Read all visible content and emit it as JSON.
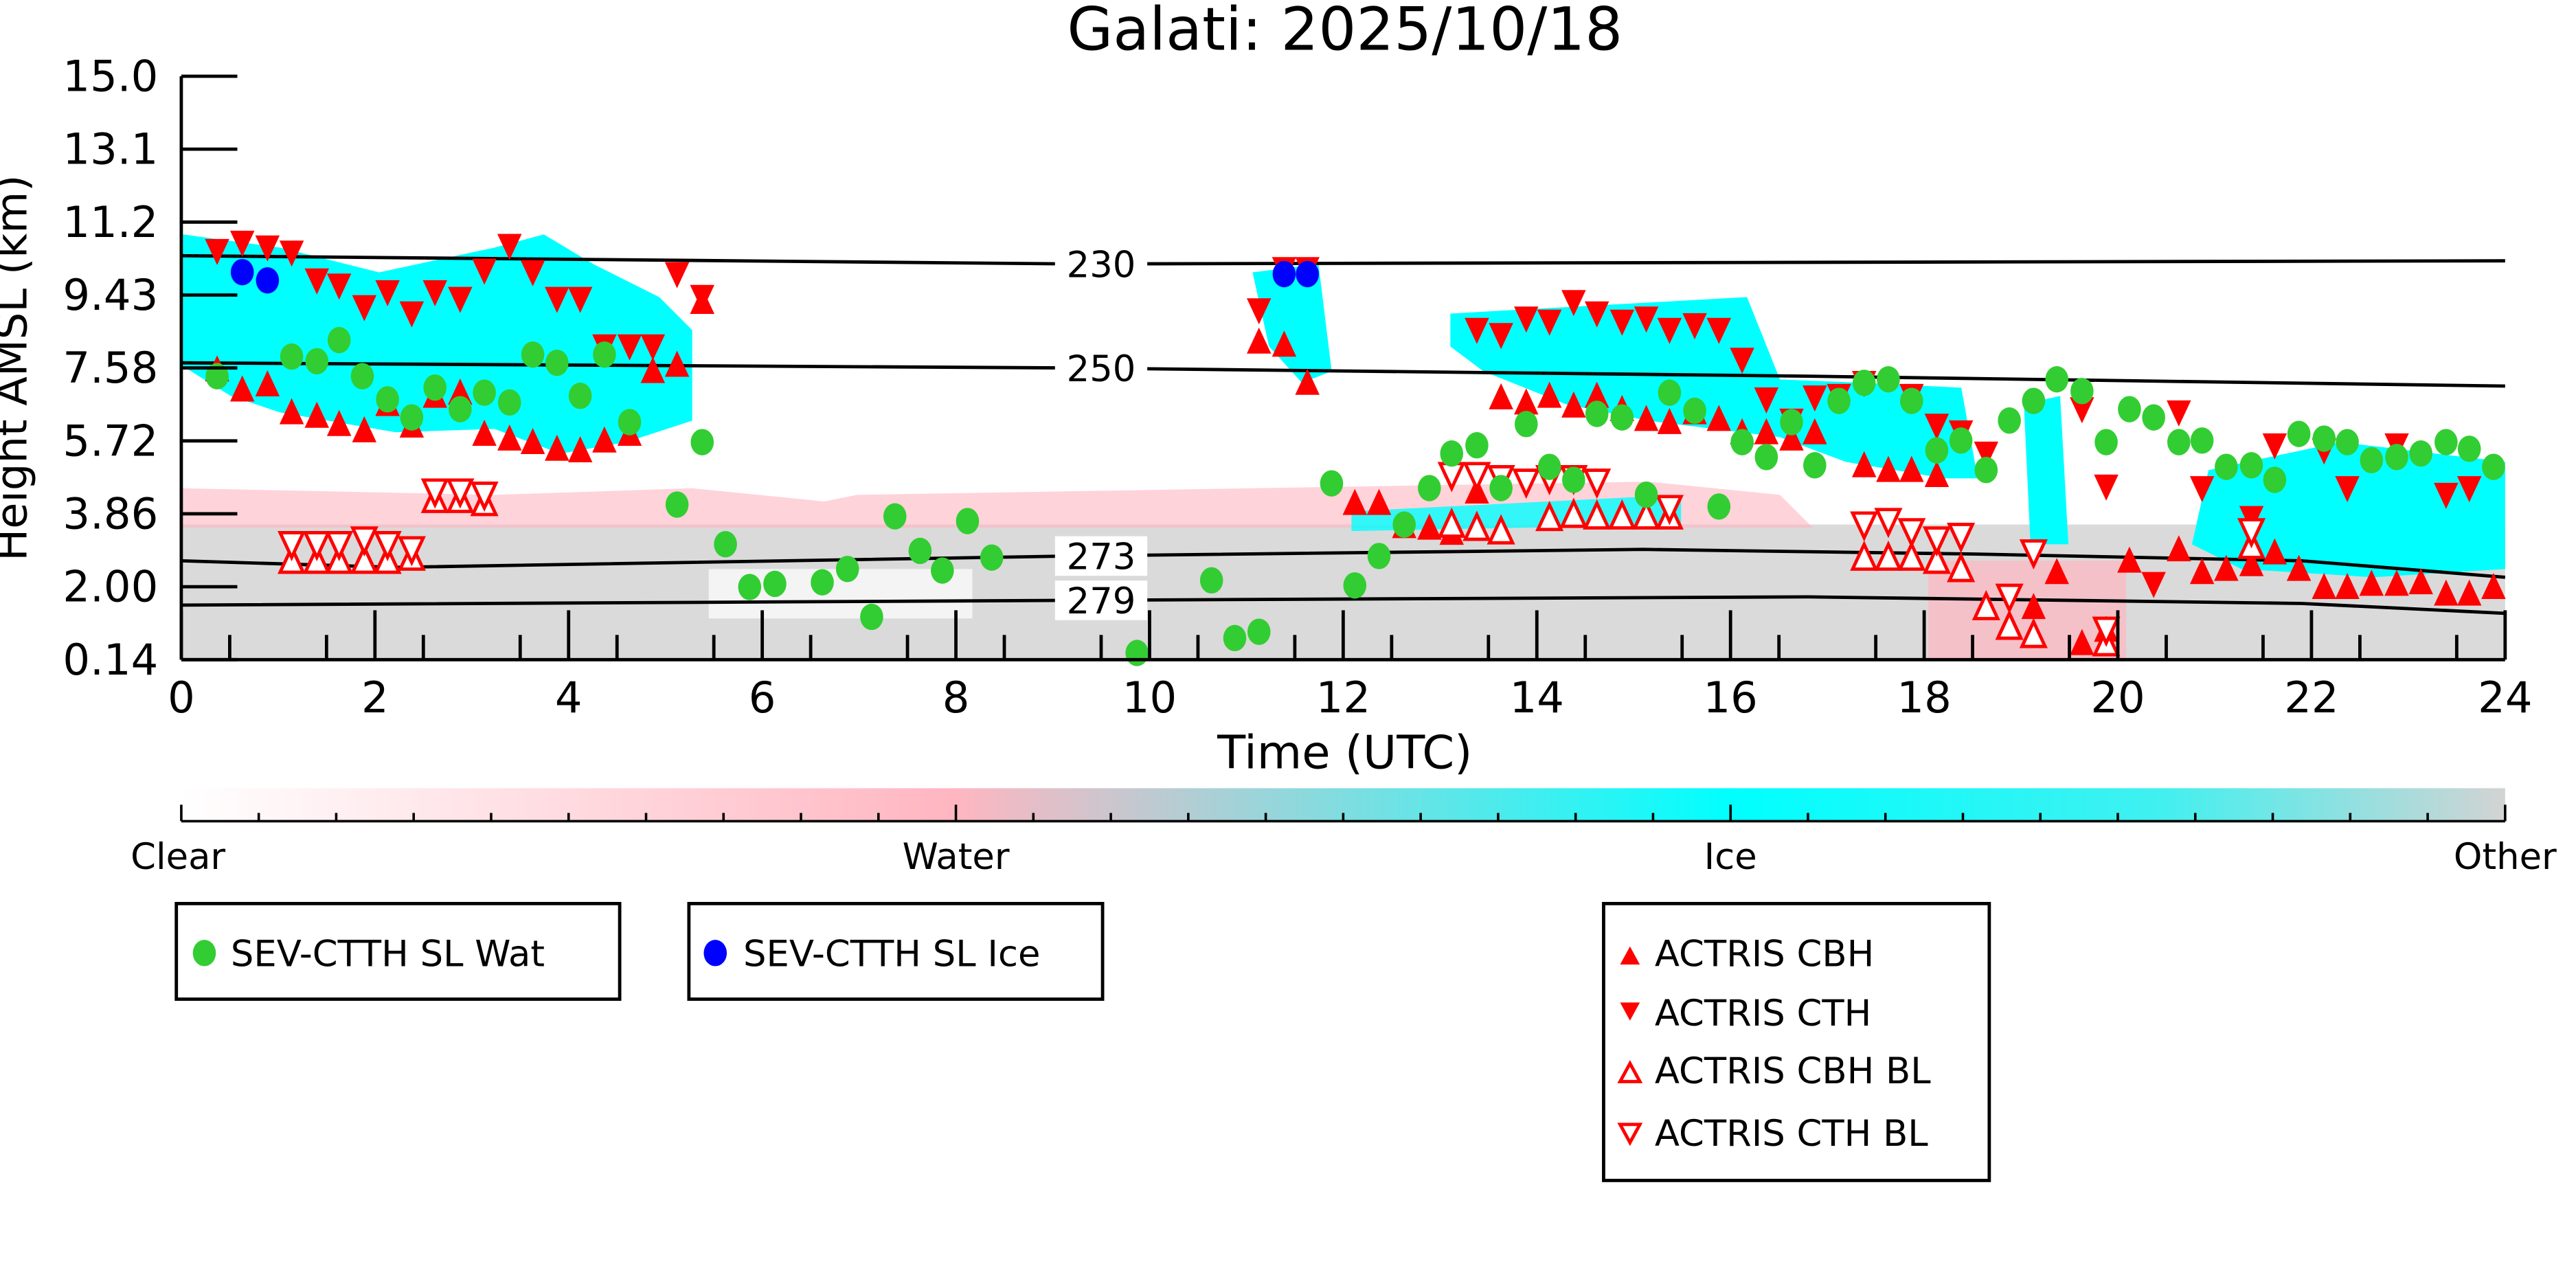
{
  "chart_data": {
    "type": "scatter",
    "title": "Galati: 2025/10/18",
    "xlabel": "Time (UTC)",
    "ylabel": "Height AMSL (km)",
    "xlim": [
      0,
      24
    ],
    "ylim": [
      0.14,
      15.0
    ],
    "xticks": [
      "0",
      "2",
      "4",
      "6",
      "8",
      "10",
      "12",
      "14",
      "16",
      "18",
      "20",
      "22",
      "24"
    ],
    "yticks": [
      "0.14",
      "2.00",
      "3.86",
      "5.72",
      "7.58",
      "9.43",
      "11.2",
      "13.1",
      "15.0"
    ],
    "colorbar": {
      "labels": [
        "Clear",
        "Water",
        "Ice",
        "Other"
      ],
      "colors": [
        "#ffffff",
        "#ffb6c1",
        "#00ffff",
        "#d3d3d3"
      ]
    },
    "isotherms": [
      {
        "label": "230",
        "points": [
          [
            0,
            10.43
          ],
          [
            9.2,
            10.22
          ],
          [
            24,
            10.3
          ]
        ]
      },
      {
        "label": "250",
        "points": [
          [
            0,
            7.7
          ],
          [
            9.2,
            7.57
          ],
          [
            16.8,
            7.36
          ],
          [
            24,
            7.11
          ]
        ]
      },
      {
        "label": "273",
        "points": [
          [
            0,
            2.66
          ],
          [
            2.2,
            2.49
          ],
          [
            9.2,
            2.78
          ],
          [
            15.1,
            2.95
          ],
          [
            18.5,
            2.83
          ],
          [
            21.9,
            2.66
          ],
          [
            24,
            2.24
          ]
        ]
      },
      {
        "label": "279",
        "points": [
          [
            0,
            1.53
          ],
          [
            9.2,
            1.65
          ],
          [
            16.8,
            1.74
          ],
          [
            21.9,
            1.57
          ],
          [
            24,
            1.32
          ]
        ]
      }
    ],
    "series": [
      {
        "name": "SEV-CTTH SL Wat",
        "marker": "circle",
        "color": "#32cd32",
        "points": [
          [
            0.37,
            7.36
          ],
          [
            1.14,
            7.86
          ],
          [
            1.4,
            7.74
          ],
          [
            1.63,
            8.28
          ],
          [
            1.87,
            7.36
          ],
          [
            2.13,
            6.77
          ],
          [
            2.38,
            6.31
          ],
          [
            2.62,
            7.07
          ],
          [
            2.88,
            6.52
          ],
          [
            3.13,
            6.94
          ],
          [
            3.39,
            6.69
          ],
          [
            3.63,
            7.91
          ],
          [
            3.88,
            7.7
          ],
          [
            4.12,
            6.86
          ],
          [
            4.37,
            7.91
          ],
          [
            4.63,
            6.19
          ],
          [
            5.12,
            4.09
          ],
          [
            5.38,
            5.68
          ],
          [
            5.62,
            3.08
          ],
          [
            5.87,
            1.99
          ],
          [
            6.13,
            2.07
          ],
          [
            6.62,
            2.11
          ],
          [
            6.88,
            2.45
          ],
          [
            7.13,
            1.23
          ],
          [
            7.37,
            3.79
          ],
          [
            7.63,
            2.91
          ],
          [
            7.86,
            2.41
          ],
          [
            8.12,
            3.67
          ],
          [
            8.37,
            2.74
          ],
          [
            9.87,
            0.31
          ],
          [
            10.64,
            2.16
          ],
          [
            10.88,
            0.69
          ],
          [
            11.13,
            0.85
          ],
          [
            11.88,
            4.63
          ],
          [
            12.12,
            2.03
          ],
          [
            12.37,
            2.78
          ],
          [
            12.63,
            3.58
          ],
          [
            12.89,
            4.51
          ],
          [
            13.12,
            5.39
          ],
          [
            13.38,
            5.6
          ],
          [
            13.63,
            4.51
          ],
          [
            13.89,
            6.14
          ],
          [
            14.13,
            5.05
          ],
          [
            14.38,
            4.72
          ],
          [
            14.62,
            6.4
          ],
          [
            14.88,
            6.31
          ],
          [
            15.13,
            4.34
          ],
          [
            15.37,
            6.94
          ],
          [
            15.63,
            6.48
          ],
          [
            15.88,
            4.04
          ],
          [
            16.12,
            5.68
          ],
          [
            16.37,
            5.3
          ],
          [
            16.63,
            6.19
          ],
          [
            16.87,
            5.09
          ],
          [
            17.12,
            6.73
          ],
          [
            17.38,
            7.19
          ],
          [
            17.63,
            7.28
          ],
          [
            17.87,
            6.73
          ],
          [
            18.13,
            5.47
          ],
          [
            18.38,
            5.72
          ],
          [
            18.64,
            4.97
          ],
          [
            18.88,
            6.23
          ],
          [
            19.13,
            6.73
          ],
          [
            19.37,
            7.28
          ],
          [
            19.63,
            6.98
          ],
          [
            19.88,
            5.68
          ],
          [
            20.12,
            6.52
          ],
          [
            20.37,
            6.31
          ],
          [
            20.63,
            5.68
          ],
          [
            20.87,
            5.72
          ],
          [
            21.12,
            5.05
          ],
          [
            21.38,
            5.09
          ],
          [
            21.62,
            4.72
          ],
          [
            21.87,
            5.89
          ],
          [
            22.13,
            5.77
          ],
          [
            22.37,
            5.68
          ],
          [
            22.62,
            5.22
          ],
          [
            22.88,
            5.3
          ],
          [
            23.13,
            5.39
          ],
          [
            23.39,
            5.68
          ],
          [
            23.63,
            5.51
          ],
          [
            23.88,
            5.05
          ]
        ]
      },
      {
        "name": "SEV-CTTH SL Ice",
        "marker": "circle",
        "color": "#0000ff",
        "points": [
          [
            0.63,
            10.01
          ],
          [
            0.89,
            9.8
          ],
          [
            11.39,
            9.96
          ],
          [
            11.63,
            9.96
          ]
        ]
      },
      {
        "name": "ACTRIS CBH",
        "marker": "triangle-up",
        "color": "#ff0000",
        "points": [
          [
            0.37,
            7.53
          ],
          [
            0.63,
            7.02
          ],
          [
            0.89,
            7.15
          ],
          [
            1.14,
            6.44
          ],
          [
            1.4,
            6.35
          ],
          [
            1.63,
            6.14
          ],
          [
            1.89,
            5.98
          ],
          [
            2.13,
            6.65
          ],
          [
            2.38,
            6.1
          ],
          [
            2.62,
            6.86
          ],
          [
            2.88,
            6.94
          ],
          [
            3.13,
            5.89
          ],
          [
            3.39,
            5.77
          ],
          [
            3.63,
            5.68
          ],
          [
            3.88,
            5.51
          ],
          [
            4.12,
            5.47
          ],
          [
            4.37,
            5.72
          ],
          [
            4.63,
            5.89
          ],
          [
            4.87,
            7.49
          ],
          [
            5.12,
            7.65
          ],
          [
            5.38,
            9.25
          ],
          [
            11.13,
            8.24
          ],
          [
            11.39,
            8.16
          ],
          [
            11.63,
            7.19
          ],
          [
            12.12,
            4.13
          ],
          [
            12.37,
            4.13
          ],
          [
            12.63,
            3.54
          ],
          [
            12.89,
            3.5
          ],
          [
            13.12,
            3.37
          ],
          [
            13.38,
            4.42
          ],
          [
            13.63,
            6.82
          ],
          [
            13.89,
            6.69
          ],
          [
            14.13,
            6.86
          ],
          [
            14.38,
            6.61
          ],
          [
            14.62,
            6.86
          ],
          [
            14.88,
            6.52
          ],
          [
            15.13,
            6.27
          ],
          [
            15.37,
            6.19
          ],
          [
            15.63,
            6.44
          ],
          [
            15.88,
            6.27
          ],
          [
            16.12,
            5.93
          ],
          [
            16.37,
            5.93
          ],
          [
            16.63,
            5.77
          ],
          [
            16.87,
            5.93
          ],
          [
            17.38,
            5.09
          ],
          [
            17.63,
            4.97
          ],
          [
            17.87,
            4.97
          ],
          [
            18.13,
            4.84
          ],
          [
            18.64,
            1.48
          ],
          [
            18.88,
            1.06
          ],
          [
            19.13,
            1.48
          ],
          [
            19.37,
            2.37
          ],
          [
            19.63,
            0.56
          ],
          [
            19.88,
            0.9
          ],
          [
            20.12,
            2.66
          ],
          [
            20.63,
            2.95
          ],
          [
            20.87,
            2.37
          ],
          [
            21.12,
            2.45
          ],
          [
            21.38,
            2.57
          ],
          [
            21.62,
            2.87
          ],
          [
            21.87,
            2.45
          ],
          [
            22.13,
            1.99
          ],
          [
            22.37,
            1.99
          ],
          [
            22.62,
            2.07
          ],
          [
            22.88,
            2.07
          ],
          [
            23.13,
            2.11
          ],
          [
            23.39,
            1.82
          ],
          [
            23.63,
            1.82
          ],
          [
            23.88,
            1.99
          ]
        ]
      },
      {
        "name": "ACTRIS CTH",
        "marker": "triangle-down",
        "color": "#ff0000",
        "points": [
          [
            0.37,
            10.55
          ],
          [
            0.63,
            10.76
          ],
          [
            0.89,
            10.64
          ],
          [
            1.14,
            10.51
          ],
          [
            1.4,
            9.8
          ],
          [
            1.63,
            9.67
          ],
          [
            1.89,
            9.12
          ],
          [
            2.13,
            9.5
          ],
          [
            2.38,
            8.96
          ],
          [
            2.62,
            9.5
          ],
          [
            2.88,
            9.33
          ],
          [
            3.13,
            10.05
          ],
          [
            3.39,
            10.68
          ],
          [
            3.63,
            10.01
          ],
          [
            3.88,
            9.33
          ],
          [
            4.12,
            9.33
          ],
          [
            4.37,
            8.12
          ],
          [
            4.63,
            8.12
          ],
          [
            4.87,
            8.12
          ],
          [
            5.12,
            9.96
          ],
          [
            5.38,
            9.38
          ],
          [
            11.13,
            9.04
          ],
          [
            11.39,
            10.09
          ],
          [
            11.63,
            10.09
          ],
          [
            13.38,
            8.54
          ],
          [
            13.63,
            8.41
          ],
          [
            13.89,
            8.83
          ],
          [
            14.13,
            8.75
          ],
          [
            14.38,
            9.25
          ],
          [
            14.62,
            8.96
          ],
          [
            14.88,
            8.75
          ],
          [
            15.13,
            8.83
          ],
          [
            15.37,
            8.54
          ],
          [
            15.63,
            8.66
          ],
          [
            15.88,
            8.54
          ],
          [
            16.12,
            7.78
          ],
          [
            16.37,
            6.77
          ],
          [
            16.63,
            6.23
          ],
          [
            16.87,
            6.82
          ],
          [
            17.12,
            6.86
          ],
          [
            17.38,
            7.19
          ],
          [
            17.87,
            6.86
          ],
          [
            18.13,
            6.1
          ],
          [
            18.38,
            5.93
          ],
          [
            18.64,
            5.39
          ],
          [
            19.63,
            6.52
          ],
          [
            19.88,
            4.55
          ],
          [
            20.37,
            2.07
          ],
          [
            20.63,
            6.44
          ],
          [
            20.87,
            4.51
          ],
          [
            21.38,
            3.75
          ],
          [
            21.62,
            5.6
          ],
          [
            22.13,
            5.47
          ],
          [
            22.37,
            4.51
          ],
          [
            22.88,
            5.6
          ],
          [
            23.39,
            4.34
          ],
          [
            23.63,
            4.51
          ]
        ]
      },
      {
        "name": "ACTRIS CBH BL",
        "marker": "triangle-up-open",
        "color": "#ff0000",
        "points": [
          [
            1.14,
            2.66
          ],
          [
            1.4,
            2.66
          ],
          [
            1.63,
            2.66
          ],
          [
            1.89,
            2.66
          ],
          [
            2.13,
            2.66
          ],
          [
            2.38,
            2.74
          ],
          [
            2.62,
            4.21
          ],
          [
            2.88,
            4.21
          ],
          [
            3.13,
            4.13
          ],
          [
            13.12,
            3.58
          ],
          [
            13.38,
            3.5
          ],
          [
            13.63,
            3.41
          ],
          [
            14.13,
            3.75
          ],
          [
            14.38,
            3.83
          ],
          [
            14.62,
            3.79
          ],
          [
            14.88,
            3.79
          ],
          [
            15.13,
            3.79
          ],
          [
            15.37,
            3.79
          ],
          [
            17.38,
            2.74
          ],
          [
            17.63,
            2.74
          ],
          [
            17.87,
            2.74
          ],
          [
            18.13,
            2.66
          ],
          [
            18.38,
            2.45
          ],
          [
            18.64,
            1.48
          ],
          [
            18.88,
            0.98
          ],
          [
            19.13,
            0.77
          ],
          [
            19.88,
            0.56
          ],
          [
            21.38,
            3.04
          ]
        ]
      },
      {
        "name": "ACTRIS CTH BL",
        "marker": "triangle-down-open",
        "color": "#ff0000",
        "points": [
          [
            1.14,
            3.08
          ],
          [
            1.4,
            3.08
          ],
          [
            1.63,
            3.08
          ],
          [
            1.89,
            3.2
          ],
          [
            2.13,
            3.08
          ],
          [
            2.38,
            2.95
          ],
          [
            2.62,
            4.42
          ],
          [
            2.88,
            4.42
          ],
          [
            3.13,
            4.34
          ],
          [
            13.12,
            4.84
          ],
          [
            13.38,
            4.84
          ],
          [
            13.63,
            4.76
          ],
          [
            13.89,
            4.67
          ],
          [
            14.13,
            4.76
          ],
          [
            14.38,
            4.76
          ],
          [
            14.62,
            4.67
          ],
          [
            15.37,
            4.0
          ],
          [
            17.38,
            3.58
          ],
          [
            17.63,
            3.67
          ],
          [
            17.87,
            3.41
          ],
          [
            18.13,
            3.2
          ],
          [
            18.38,
            3.29
          ],
          [
            18.88,
            1.74
          ],
          [
            19.13,
            2.87
          ],
          [
            19.88,
            0.9
          ],
          [
            21.38,
            3.41
          ]
        ]
      }
    ]
  }
}
